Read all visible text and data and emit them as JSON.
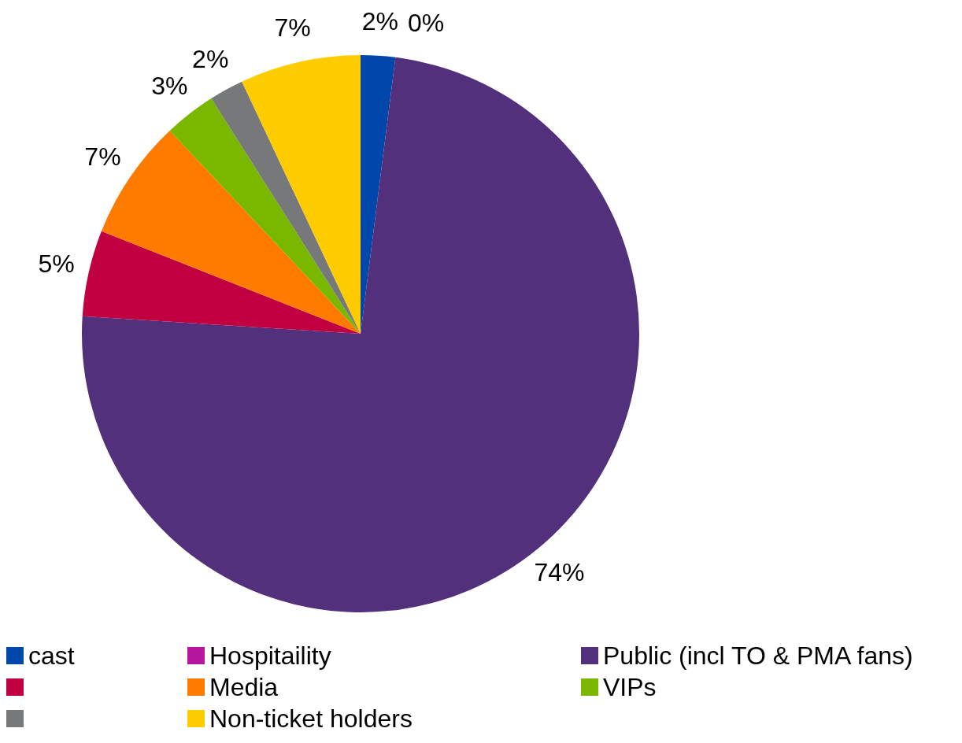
{
  "chart_data": {
    "type": "pie",
    "categories": [
      "cast",
      "Hospitaility",
      "Public (incl TO & PMA fans)",
      null,
      "Media",
      "VIPs",
      null,
      "Non-ticket holders"
    ],
    "values": [
      2,
      0,
      74,
      5,
      7,
      3,
      2,
      7
    ],
    "colors": [
      "#0047ab",
      "#b5179e",
      "#52307c",
      "#c00040",
      "#ff7b00",
      "#7ab800",
      "#76787a",
      "#ffcc00"
    ],
    "value_labels": [
      "2%",
      "0%",
      "74%",
      "5%",
      "7%",
      "3%",
      "2%",
      "7%"
    ],
    "legend": "bottom"
  }
}
